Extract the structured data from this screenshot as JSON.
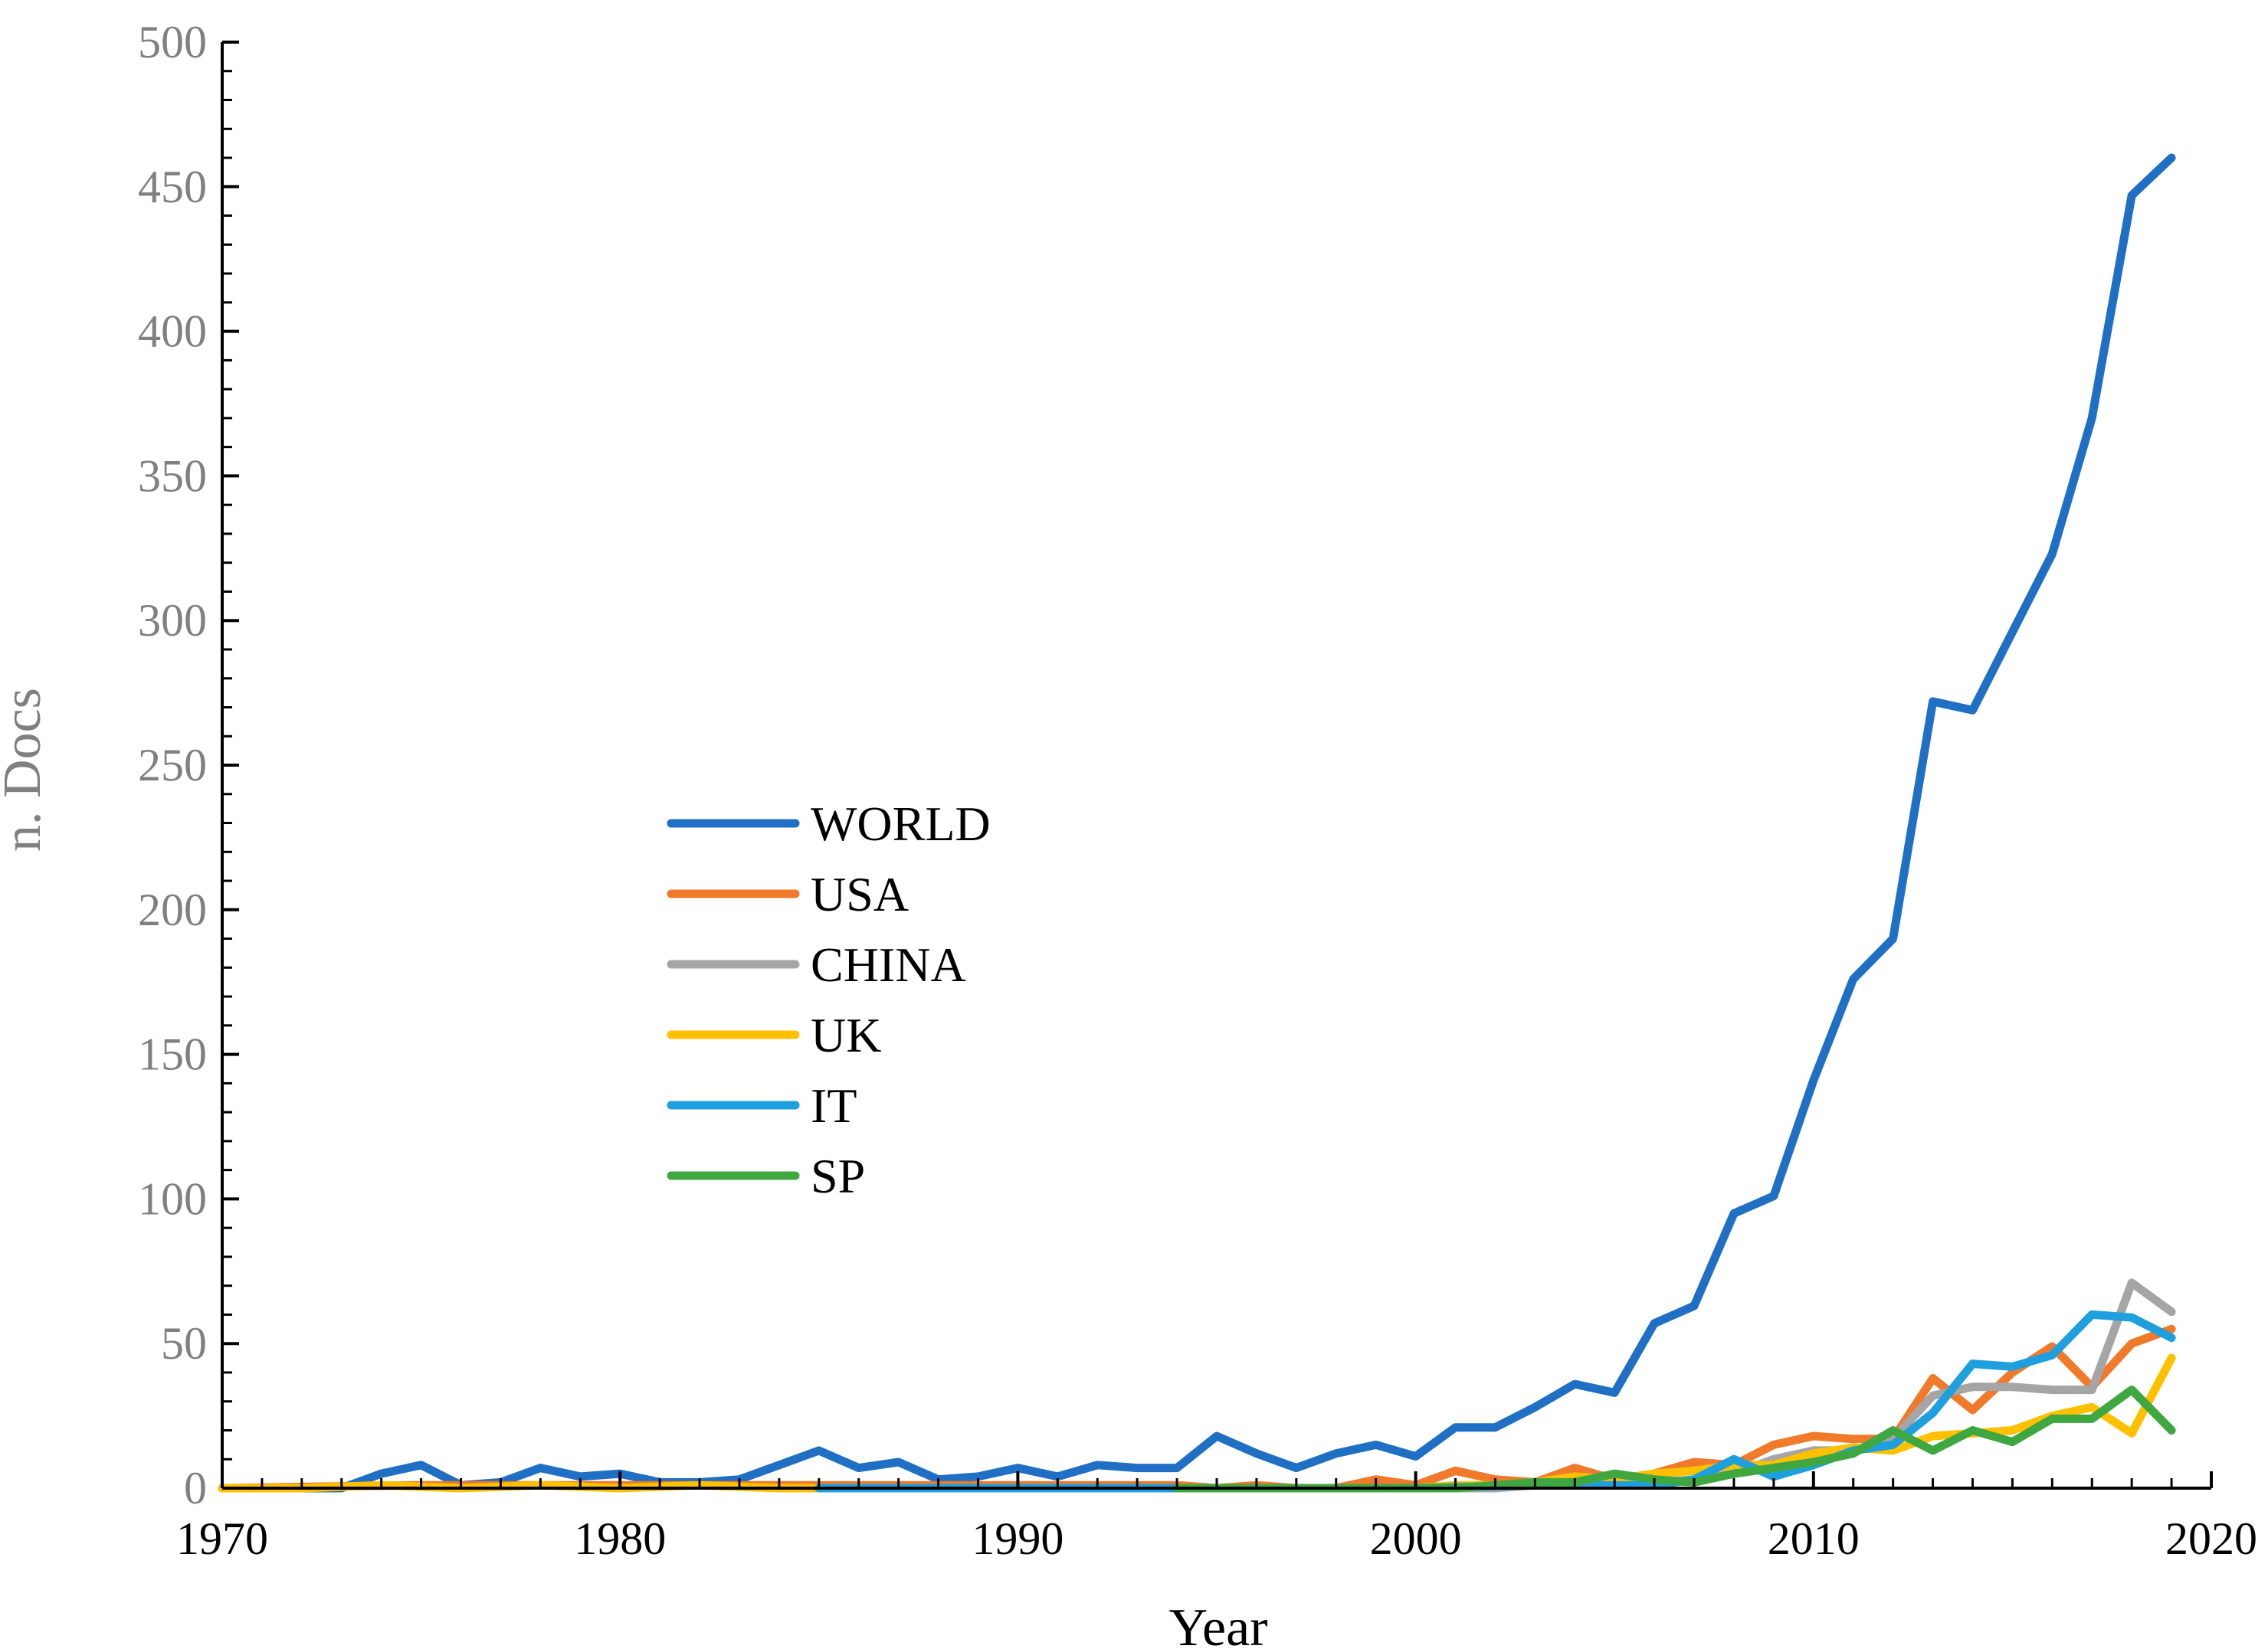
{
  "chart_data": {
    "type": "line",
    "title": "",
    "xlabel": "Year",
    "ylabel": "n. Docs",
    "xlim": [
      1970,
      2020
    ],
    "ylim": [
      0,
      500
    ],
    "x_ticks": [
      "1970",
      "1980",
      "1990",
      "2000",
      "2010",
      "2020"
    ],
    "y_ticks": [
      "0",
      "50",
      "100",
      "150",
      "200",
      "250",
      "300",
      "350",
      "400",
      "450",
      "500"
    ],
    "grid": false,
    "legend_position": "center-left",
    "series": [
      {
        "name": "WORLD",
        "color": "#1f6fc5",
        "points": [
          [
            1970,
            0
          ],
          [
            1971,
            0
          ],
          [
            1972,
            0
          ],
          [
            1973,
            0
          ],
          [
            1974,
            5
          ],
          [
            1975,
            8
          ],
          [
            1976,
            1
          ],
          [
            1977,
            2
          ],
          [
            1978,
            7
          ],
          [
            1979,
            4
          ],
          [
            1980,
            5
          ],
          [
            1981,
            2
          ],
          [
            1982,
            2
          ],
          [
            1983,
            3
          ],
          [
            1984,
            8
          ],
          [
            1985,
            13
          ],
          [
            1986,
            7
          ],
          [
            1987,
            9
          ],
          [
            1988,
            3
          ],
          [
            1989,
            4
          ],
          [
            1990,
            7
          ],
          [
            1991,
            4
          ],
          [
            1992,
            8
          ],
          [
            1993,
            7
          ],
          [
            1994,
            7
          ],
          [
            1995,
            18
          ],
          [
            1996,
            12
          ],
          [
            1997,
            7
          ],
          [
            1998,
            12
          ],
          [
            1999,
            15
          ],
          [
            2000,
            11
          ],
          [
            2001,
            21
          ],
          [
            2002,
            21
          ],
          [
            2003,
            28
          ],
          [
            2004,
            36
          ],
          [
            2005,
            33
          ],
          [
            2006,
            57
          ],
          [
            2007,
            63
          ],
          [
            2008,
            95
          ],
          [
            2009,
            101
          ],
          [
            2010,
            141
          ],
          [
            2011,
            176
          ],
          [
            2012,
            190
          ],
          [
            2013,
            272
          ],
          [
            2014,
            269
          ],
          [
            2015,
            296
          ],
          [
            2016,
            323
          ],
          [
            2017,
            370
          ],
          [
            2018,
            447
          ],
          [
            2019,
            460
          ]
        ]
      },
      {
        "name": "USA",
        "color": "#f07a2a",
        "points": [
          [
            1970,
            0
          ],
          [
            1975,
            1
          ],
          [
            1980,
            1
          ],
          [
            1985,
            1
          ],
          [
            1990,
            1
          ],
          [
            1994,
            1
          ],
          [
            1995,
            0
          ],
          [
            1996,
            1
          ],
          [
            1997,
            0
          ],
          [
            1998,
            0
          ],
          [
            1999,
            3
          ],
          [
            2000,
            1
          ],
          [
            2001,
            6
          ],
          [
            2002,
            3
          ],
          [
            2003,
            2
          ],
          [
            2004,
            7
          ],
          [
            2005,
            3
          ],
          [
            2006,
            5
          ],
          [
            2007,
            9
          ],
          [
            2008,
            8
          ],
          [
            2009,
            15
          ],
          [
            2010,
            18
          ],
          [
            2011,
            17
          ],
          [
            2012,
            17
          ],
          [
            2013,
            38
          ],
          [
            2014,
            27
          ],
          [
            2015,
            40
          ],
          [
            2016,
            49
          ],
          [
            2017,
            35
          ],
          [
            2018,
            50
          ],
          [
            2019,
            55
          ]
        ]
      },
      {
        "name": "CHINA",
        "color": "#a5a5a5",
        "points": [
          [
            2001,
            0
          ],
          [
            2002,
            0
          ],
          [
            2003,
            1
          ],
          [
            2004,
            1
          ],
          [
            2005,
            1
          ],
          [
            2006,
            2
          ],
          [
            2007,
            3
          ],
          [
            2008,
            5
          ],
          [
            2009,
            10
          ],
          [
            2010,
            13
          ],
          [
            2011,
            13
          ],
          [
            2012,
            17
          ],
          [
            2013,
            32
          ],
          [
            2014,
            35
          ],
          [
            2015,
            35
          ],
          [
            2016,
            34
          ],
          [
            2017,
            34
          ],
          [
            2018,
            71
          ],
          [
            2019,
            61
          ]
        ]
      },
      {
        "name": "UK",
        "color": "#ffc000",
        "points": [
          [
            1970,
            0
          ],
          [
            1972,
            0
          ],
          [
            1974,
            1
          ],
          [
            1976,
            0
          ],
          [
            1978,
            1
          ],
          [
            1980,
            0
          ],
          [
            1982,
            1
          ],
          [
            1984,
            0
          ],
          [
            1985,
            0
          ],
          [
            1990,
            0
          ],
          [
            1995,
            0
          ],
          [
            2000,
            0
          ],
          [
            2001,
            1
          ],
          [
            2002,
            1
          ],
          [
            2003,
            2
          ],
          [
            2004,
            4
          ],
          [
            2005,
            3
          ],
          [
            2006,
            5
          ],
          [
            2007,
            6
          ],
          [
            2008,
            8
          ],
          [
            2009,
            8
          ],
          [
            2010,
            12
          ],
          [
            2011,
            14
          ],
          [
            2012,
            13
          ],
          [
            2013,
            18
          ],
          [
            2014,
            19
          ],
          [
            2015,
            20
          ],
          [
            2016,
            25
          ],
          [
            2017,
            28
          ],
          [
            2018,
            19
          ],
          [
            2019,
            45
          ]
        ]
      },
      {
        "name": "IT",
        "color": "#1ea0de",
        "points": [
          [
            1985,
            0
          ],
          [
            1990,
            0
          ],
          [
            1995,
            0
          ],
          [
            2000,
            0
          ],
          [
            2003,
            1
          ],
          [
            2004,
            1
          ],
          [
            2005,
            1
          ],
          [
            2006,
            1
          ],
          [
            2007,
            3
          ],
          [
            2008,
            10
          ],
          [
            2009,
            4
          ],
          [
            2010,
            8
          ],
          [
            2011,
            13
          ],
          [
            2012,
            15
          ],
          [
            2013,
            26
          ],
          [
            2014,
            43
          ],
          [
            2015,
            42
          ],
          [
            2016,
            46
          ],
          [
            2017,
            60
          ],
          [
            2018,
            59
          ],
          [
            2019,
            52
          ]
        ]
      },
      {
        "name": "SP",
        "color": "#3fa73f",
        "points": [
          [
            1994,
            0
          ],
          [
            1996,
            0
          ],
          [
            1998,
            0
          ],
          [
            2000,
            0
          ],
          [
            2001,
            0
          ],
          [
            2002,
            1
          ],
          [
            2003,
            2
          ],
          [
            2004,
            2
          ],
          [
            2005,
            5
          ],
          [
            2006,
            3
          ],
          [
            2007,
            2
          ],
          [
            2008,
            5
          ],
          [
            2009,
            7
          ],
          [
            2010,
            9
          ],
          [
            2011,
            12
          ],
          [
            2012,
            20
          ],
          [
            2013,
            13
          ],
          [
            2014,
            20
          ],
          [
            2015,
            16
          ],
          [
            2016,
            24
          ],
          [
            2017,
            24
          ],
          [
            2018,
            34
          ],
          [
            2019,
            20
          ]
        ]
      }
    ]
  },
  "colors": {
    "axis": "#000000",
    "tick_label_y": "#808080",
    "tick_label_x": "#000000",
    "ylabel": "#808080",
    "xlabel": "#000000"
  }
}
